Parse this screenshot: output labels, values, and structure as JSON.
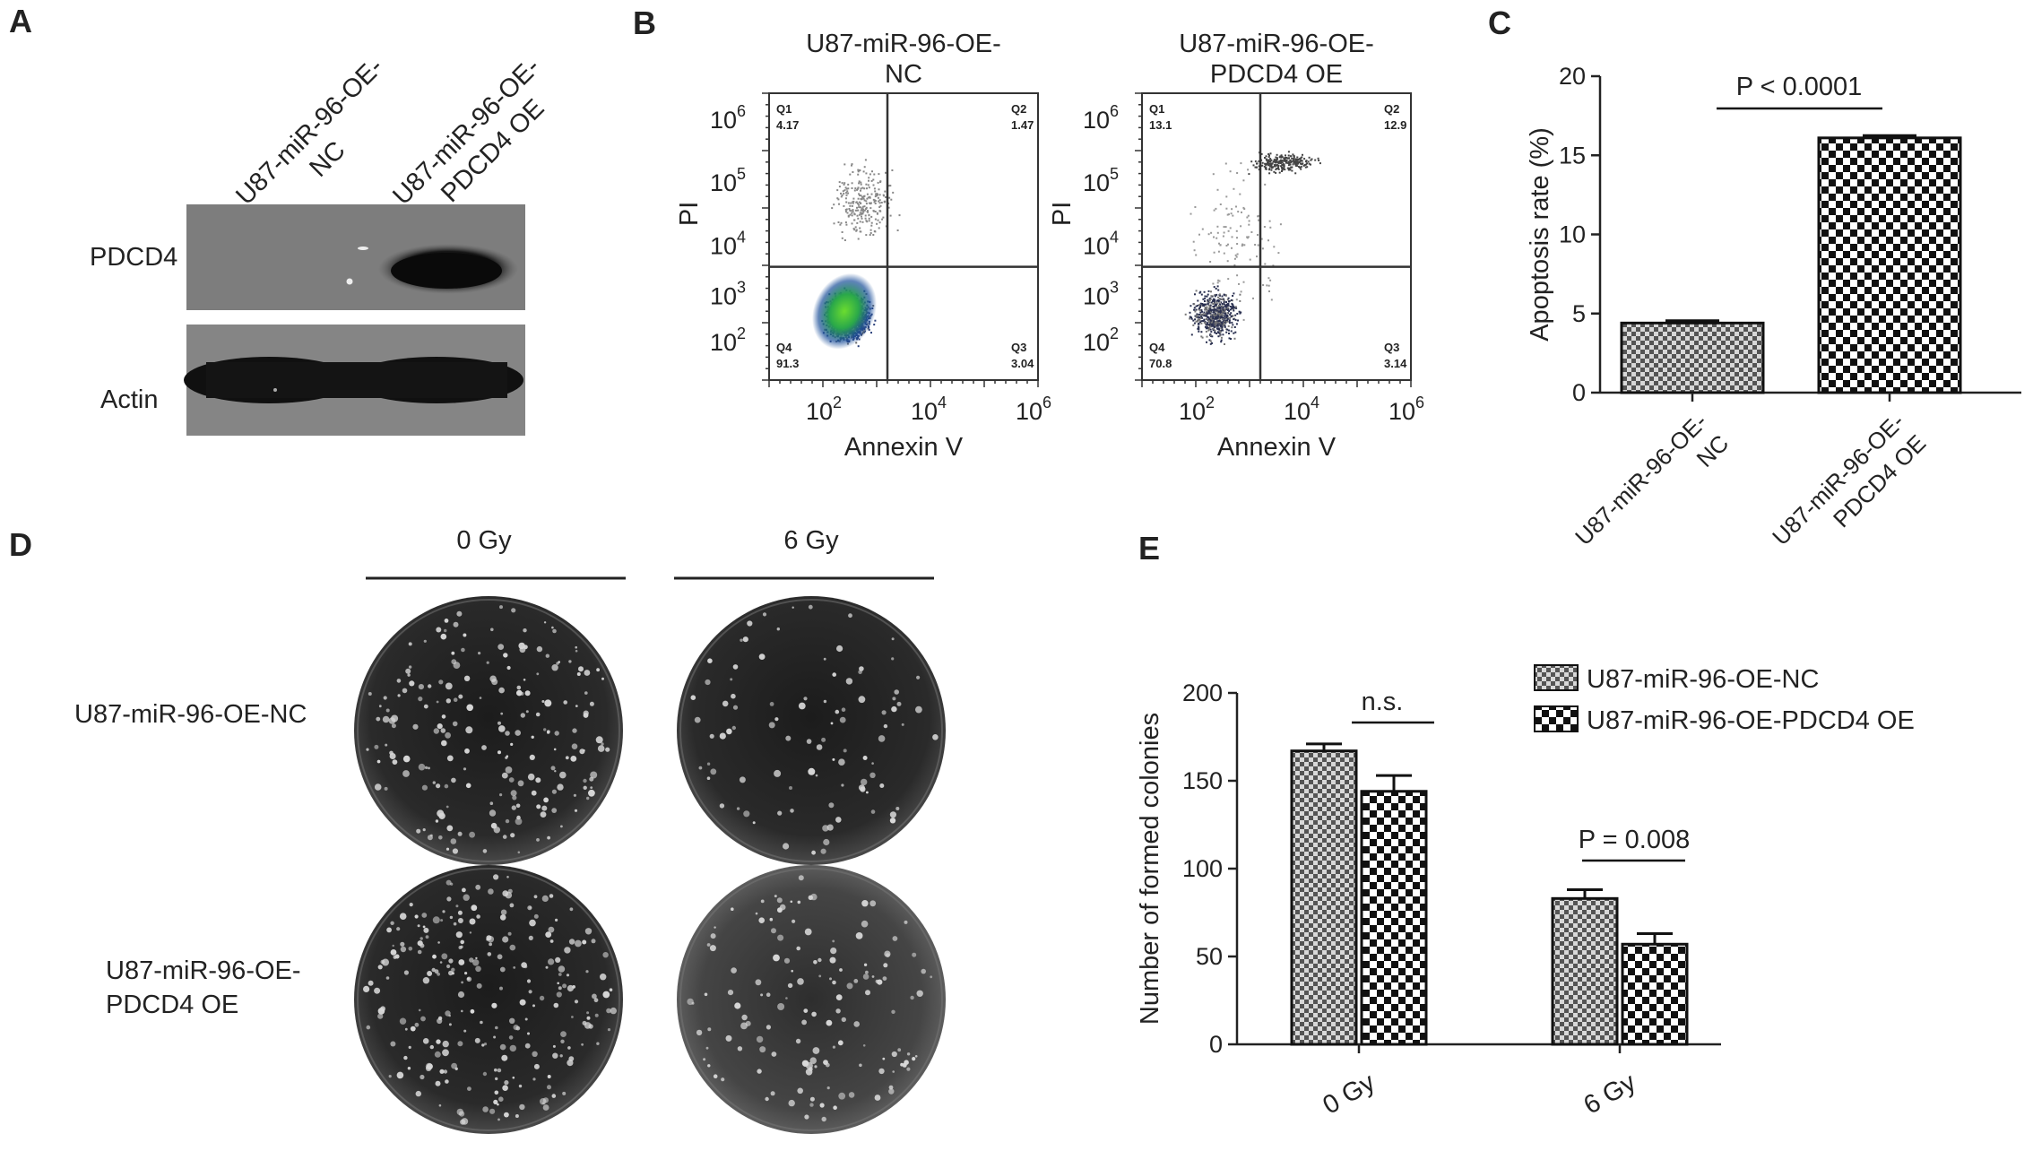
{
  "panels": {
    "A": {
      "letter": "A",
      "lane_labels": [
        [
          "U87-miR-96-OE-",
          "NC"
        ],
        [
          "U87-miR-96-OE-",
          "PDCD4 OE"
        ]
      ],
      "blots": [
        "PDCD4",
        "Actin"
      ]
    },
    "B": {
      "letter": "B",
      "plots": [
        {
          "title_lines": [
            "U87-miR-96-OE-",
            "NC"
          ],
          "quadrants": [
            {
              "name": "Q1",
              "value": "4.17"
            },
            {
              "name": "Q2",
              "value": "1.47"
            },
            {
              "name": "Q3",
              "value": "3.04"
            },
            {
              "name": "Q4",
              "value": "91.3"
            }
          ]
        },
        {
          "title_lines": [
            "U87-miR-96-OE-",
            "PDCD4 OE"
          ],
          "quadrants": [
            {
              "name": "Q1",
              "value": "13.1"
            },
            {
              "name": "Q2",
              "value": "12.9"
            },
            {
              "name": "Q3",
              "value": "3.14"
            },
            {
              "name": "Q4",
              "value": "70.8"
            }
          ]
        }
      ],
      "xlabel": "Annexin V",
      "ylabel": "PI",
      "tick_base": "10",
      "x_tick_exponents": [
        "2",
        "4",
        "6"
      ],
      "y_tick_exponents": [
        "2",
        "3",
        "4",
        "5",
        "6"
      ]
    },
    "C": {
      "letter": "C"
    },
    "D": {
      "letter": "D",
      "columns": [
        "0 Gy",
        "6 Gy"
      ],
      "rows": [
        [
          "U87-miR-96-OE-NC"
        ],
        [
          "U87-miR-96-OE-",
          "PDCD4 OE"
        ]
      ]
    },
    "E": {
      "letter": "E"
    }
  },
  "chart_data": [
    {
      "type": "bar",
      "panel": "C",
      "categories": [
        "U87-miR-96-OE-\nNC",
        "U87-miR-96-OE-\nPDCD4 OE"
      ],
      "values": [
        4.4,
        16.1
      ],
      "errors": [
        0.15,
        0.15
      ],
      "xlabel": "",
      "ylabel": "Apoptosis rate (%)",
      "ylim": [
        0,
        20
      ],
      "yticks": [
        0,
        5,
        10,
        15,
        20
      ],
      "annotation": "P < 0.0001",
      "fill_patterns": [
        "fine-check",
        "coarse-check"
      ]
    },
    {
      "type": "bar",
      "panel": "E",
      "categories": [
        "0 Gy",
        "6 Gy"
      ],
      "series": [
        {
          "name": "U87-miR-96-OE-NC",
          "values": [
            167,
            83
          ],
          "errors": [
            4,
            5
          ],
          "pattern": "fine-check"
        },
        {
          "name": "U87-miR-96-OE-PDCD4 OE",
          "values": [
            144,
            57
          ],
          "errors": [
            9,
            6
          ],
          "pattern": "coarse-check"
        }
      ],
      "xlabel": "",
      "ylabel": "Number of formed colonies",
      "ylim": [
        0,
        200
      ],
      "yticks": [
        0,
        50,
        100,
        150,
        200
      ],
      "annotations": [
        "n.s.",
        "P = 0.008"
      ],
      "legend": "top-right"
    }
  ]
}
